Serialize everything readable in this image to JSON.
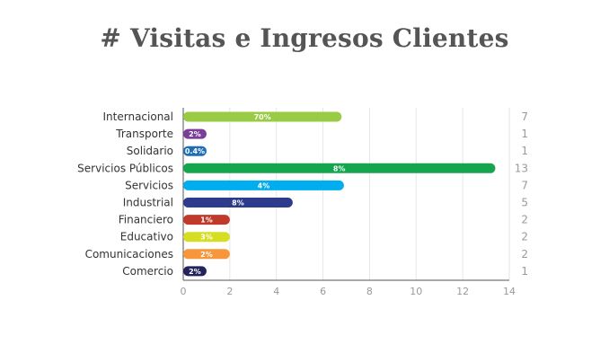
{
  "chart_data": {
    "type": "bar",
    "orientation": "horizontal",
    "title": "# Visitas e Ingresos Clientes",
    "xlabel": "",
    "ylabel": "",
    "xlim": [
      0,
      14
    ],
    "x_ticks": [
      "0",
      "2",
      "4",
      "6",
      "8",
      "10",
      "12",
      "14"
    ],
    "grid": "vertical",
    "categories": [
      "Internacional",
      "Transporte",
      "Solidario",
      "Servicios Públicos",
      "Servicios",
      "Industrial",
      "Financiero",
      "Educativo",
      "Comunicaciones",
      "Comercio"
    ],
    "values": [
      6.8,
      1,
      1,
      13.4,
      6.9,
      4.7,
      2,
      2,
      2,
      1
    ],
    "bar_labels": [
      "70%",
      "2%",
      "0.4%",
      "8%",
      "4%",
      "8%",
      "1%",
      "3%",
      "2%",
      "2%"
    ],
    "counts": [
      "7",
      "1",
      "1",
      "13",
      "7",
      "5",
      "2",
      "2",
      "2",
      "1"
    ],
    "colors": [
      "#99cc44",
      "#7b3f9a",
      "#1f6db5",
      "#14a54e",
      "#00aeef",
      "#2e3a8c",
      "#c0392b",
      "#d6de23",
      "#f7963a",
      "#23225c"
    ]
  }
}
